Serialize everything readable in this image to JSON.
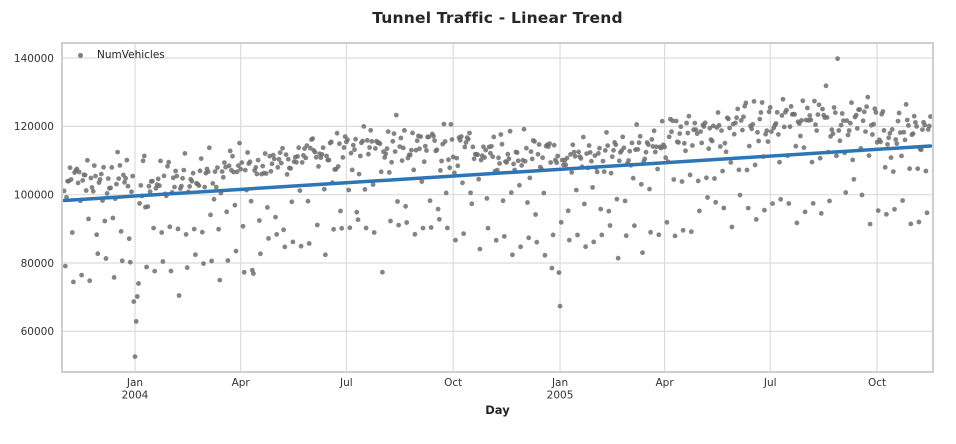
{
  "chart_data": {
    "type": "scatter",
    "title": "Tunnel Traffic - Linear Trend",
    "xlabel": "Day",
    "legend_label": "NumVehicles",
    "series": [
      {
        "name": "NumVehicles",
        "kind": "scatter",
        "color": "#7f7f7f"
      },
      {
        "name": "Linear Trend",
        "kind": "line",
        "color": "#2e75b6"
      }
    ],
    "x_axis": {
      "start_date": "2003-11-01",
      "end_date": "2005-11-16",
      "domain_days": {
        "min": -1.85,
        "max": 748.15
      },
      "ticks": [
        {
          "day": 61,
          "label": "Jan",
          "year": "2004"
        },
        {
          "day": 152,
          "label": "Apr",
          "year": ""
        },
        {
          "day": 243,
          "label": "Jul",
          "year": ""
        },
        {
          "day": 335,
          "label": "Oct",
          "year": ""
        },
        {
          "day": 427,
          "label": "Jan",
          "year": "2005"
        },
        {
          "day": 517,
          "label": "Apr",
          "year": ""
        },
        {
          "day": 608,
          "label": "Jul",
          "year": ""
        },
        {
          "day": 700,
          "label": "Oct",
          "year": ""
        }
      ]
    },
    "y_axis": {
      "domain": {
        "min": 48100,
        "max": 144400
      },
      "ticks": [
        {
          "value": 60000,
          "label": "60000"
        },
        {
          "value": 80000,
          "label": "80000"
        },
        {
          "value": 100000,
          "label": "100000"
        },
        {
          "value": 120000,
          "label": "120000"
        },
        {
          "value": 140000,
          "label": "140000"
        }
      ]
    },
    "trend_line": {
      "color": "#2e75b6",
      "width": 3.5,
      "points": [
        {
          "day": 0,
          "value": 98300
        },
        {
          "day": 746,
          "value": 114250
        }
      ]
    },
    "scatter": {
      "color": "#6f6f6f",
      "opacity": 0.85,
      "radius": 2.4,
      "n_points": 747,
      "generator": {
        "seed": 7,
        "n_days": 747,
        "trend_intercept": 98300,
        "trend_slope": 21.38,
        "dow_offsets_sat_first": [
          -4500,
          -18000,
          4800,
          6500,
          7200,
          8000,
          9500
        ],
        "seasonal_amplitude": 3500,
        "seasonal_trough_day": 75,
        "noise_sd": 3000,
        "clamp": [
          51500,
          140500
        ]
      },
      "anomalies": [
        {
          "day": 60,
          "value": 68700,
          "date": "2003-12-31"
        },
        {
          "day": 61,
          "value": 52600,
          "date": "2004-01-01"
        },
        {
          "day": 62,
          "value": 62900,
          "date": "2004-01-02"
        },
        {
          "day": 63,
          "value": 70200,
          "date": "2004-01-03"
        },
        {
          "day": 64,
          "value": 74000,
          "date": "2004-01-04"
        },
        {
          "day": 99,
          "value": 70500,
          "date": "2004-02-08"
        },
        {
          "day": 162,
          "value": 77900,
          "date": "2004-04-11"
        },
        {
          "day": 163,
          "value": 76900,
          "date": "2004-04-12"
        },
        {
          "day": 274,
          "value": 77300,
          "date": "2004-08-01"
        },
        {
          "day": 420,
          "value": 78500,
          "date": "2004-12-25"
        },
        {
          "day": 426,
          "value": 77200,
          "date": "2004-12-31"
        },
        {
          "day": 427,
          "value": 67400,
          "date": "2005-01-01"
        },
        {
          "day": 666,
          "value": 139800,
          "date": "2005-08-28"
        }
      ]
    },
    "grid_color": "#dcdcdc",
    "spine_color": "#cfcfcf",
    "background_color": "#ffffff",
    "text_color": "#333333"
  }
}
